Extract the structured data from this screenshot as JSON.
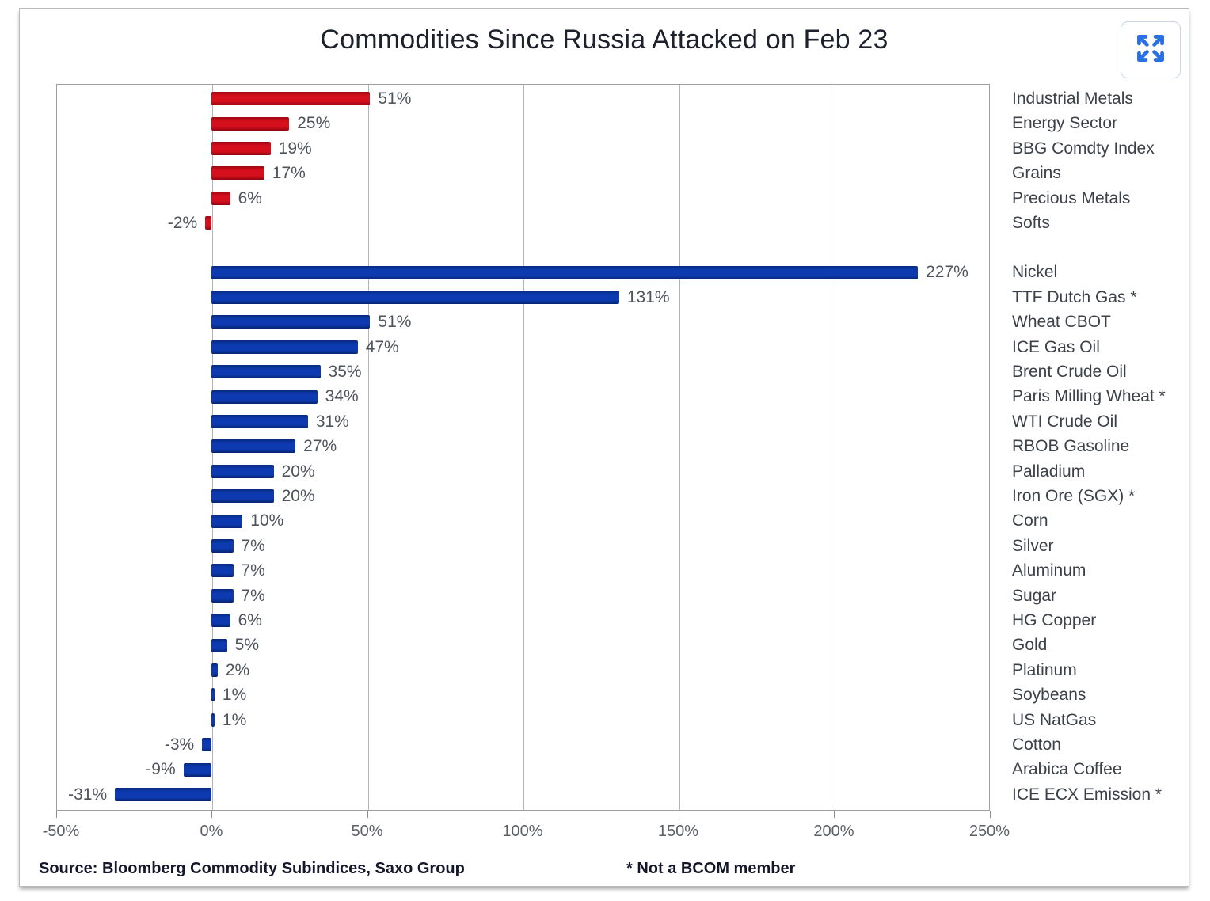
{
  "title": "Commodities Since Russia Attacked on Feb 23",
  "expand_button": {
    "icon": "expand-arrows-icon",
    "color": "#2b6fe4"
  },
  "footer": {
    "source": "Source: Bloomberg Commodity Subindices, Saxo Group",
    "note": "* Not a BCOM member"
  },
  "chart_data": {
    "type": "bar",
    "orientation": "horizontal",
    "title": "Commodities Since Russia Attacked on Feb 23",
    "unit": "%",
    "xlim": [
      -50,
      250
    ],
    "xtick_values": [
      -50,
      0,
      50,
      100,
      150,
      200,
      250
    ],
    "xtick_labels": [
      "-50%",
      "0%",
      "50%",
      "100%",
      "150%",
      "200%",
      "250%"
    ],
    "grid": "vertical",
    "value_labels_shown": true,
    "groups": [
      {
        "color": "#c90d18",
        "items": [
          {
            "label": "Industrial Metals",
            "value": 51
          },
          {
            "label": "Energy Sector",
            "value": 25
          },
          {
            "label": "BBG Comdty Index",
            "value": 19
          },
          {
            "label": "Grains",
            "value": 17
          },
          {
            "label": "Precious Metals",
            "value": 6
          },
          {
            "label": "Softs",
            "value": -2
          }
        ]
      },
      {
        "color": "#0a35a8",
        "items": [
          {
            "label": "Nickel",
            "value": 227
          },
          {
            "label": "TTF Dutch Gas *",
            "value": 131
          },
          {
            "label": "Wheat CBOT",
            "value": 51
          },
          {
            "label": "ICE Gas Oil",
            "value": 47
          },
          {
            "label": "Brent Crude Oil",
            "value": 35
          },
          {
            "label": "Paris Milling Wheat *",
            "value": 34
          },
          {
            "label": "WTI Crude Oil",
            "value": 31
          },
          {
            "label": "RBOB Gasoline",
            "value": 27
          },
          {
            "label": "Palladium",
            "value": 20
          },
          {
            "label": "Iron Ore (SGX) *",
            "value": 20
          },
          {
            "label": "Corn",
            "value": 10
          },
          {
            "label": "Silver",
            "value": 7
          },
          {
            "label": "Aluminum",
            "value": 7
          },
          {
            "label": "Sugar",
            "value": 7
          },
          {
            "label": "HG Copper",
            "value": 6
          },
          {
            "label": "Gold",
            "value": 5
          },
          {
            "label": "Platinum",
            "value": 2
          },
          {
            "label": "Soybeans",
            "value": 1
          },
          {
            "label": "US NatGas",
            "value": 1
          },
          {
            "label": "Cotton",
            "value": -3
          },
          {
            "label": "Arabica Coffee",
            "value": -9
          },
          {
            "label": "ICE ECX Emission *",
            "value": -31
          }
        ]
      }
    ]
  }
}
